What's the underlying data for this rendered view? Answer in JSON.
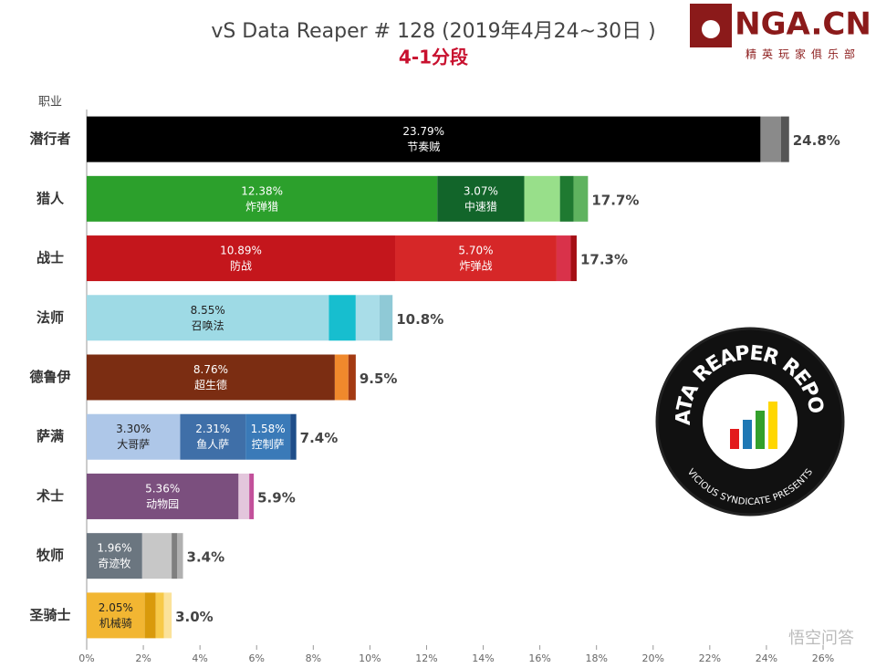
{
  "chart_data": {
    "type": "stacked-barh",
    "title": "vS Data Reaper # 128 (2019年4月24~30日 )",
    "subtitle": "4-1分段",
    "ylabel": "职业",
    "xlim": [
      0,
      26
    ],
    "xticks": [
      {
        "value": 0,
        "label": "0%"
      },
      {
        "value": 2,
        "label": "2%"
      },
      {
        "value": 4,
        "label": "4%"
      },
      {
        "value": 6,
        "label": "6%"
      },
      {
        "value": 8,
        "label": "8%"
      },
      {
        "value": 10,
        "label": "10%"
      },
      {
        "value": 12,
        "label": "12%"
      },
      {
        "value": 14,
        "label": "14%"
      },
      {
        "value": 16,
        "label": "16%"
      },
      {
        "value": 18,
        "label": "18%"
      },
      {
        "value": 20,
        "label": "20%"
      },
      {
        "value": 22,
        "label": "22%"
      },
      {
        "value": 24,
        "label": "24%"
      },
      {
        "value": 26,
        "label": "26%"
      }
    ],
    "bars": [
      {
        "category": "潜行者",
        "total": 24.8,
        "total_label": "24.8%",
        "segments": [
          {
            "name": "节奏贼",
            "value": 23.79,
            "value_label": "23.79%",
            "color": "#000000"
          },
          {
            "value": 0.72,
            "color": "#8a8a8a"
          },
          {
            "value": 0.29,
            "color": "#555555"
          }
        ]
      },
      {
        "category": "猎人",
        "total": 17.7,
        "total_label": "17.7%",
        "segments": [
          {
            "name": "炸弹猎",
            "value": 12.38,
            "value_label": "12.38%",
            "color": "#2ca02c"
          },
          {
            "name": "中速猎",
            "value": 3.07,
            "value_label": "3.07%",
            "color": "#12652a"
          },
          {
            "value": 1.26,
            "color": "#98df8a"
          },
          {
            "value": 0.48,
            "color": "#1f7a31"
          },
          {
            "value": 0.51,
            "color": "#5fb35f"
          }
        ]
      },
      {
        "category": "战士",
        "total": 17.3,
        "total_label": "17.3%",
        "segments": [
          {
            "name": "防战",
            "value": 10.89,
            "value_label": "10.89%",
            "color": "#c4161c"
          },
          {
            "name": "炸弹战",
            "value": 5.7,
            "value_label": "5.70%",
            "color": "#d62728"
          },
          {
            "value": 0.5,
            "color": "#d9324a"
          },
          {
            "value": 0.21,
            "color": "#a50f15"
          }
        ]
      },
      {
        "category": "法师",
        "total": 10.8,
        "total_label": "10.8%",
        "segments": [
          {
            "name": "召唤法",
            "value": 8.55,
            "value_label": "8.55%",
            "color": "#9edae5"
          },
          {
            "value": 0.95,
            "color": "#17becf"
          },
          {
            "value": 0.84,
            "color": "#a9dde8"
          },
          {
            "value": 0.46,
            "color": "#8fc9d6"
          }
        ]
      },
      {
        "category": "德鲁伊",
        "total": 9.5,
        "total_label": "9.5%",
        "segments": [
          {
            "name": "超生德",
            "value": 8.76,
            "value_label": "8.76%",
            "color": "#7b2d12"
          },
          {
            "value": 0.48,
            "color": "#f0892c"
          },
          {
            "value": 0.26,
            "color": "#a33a12"
          }
        ]
      },
      {
        "category": "萨满",
        "total": 7.4,
        "total_label": "7.4%",
        "segments": [
          {
            "name": "大哥萨",
            "value": 3.3,
            "value_label": "3.30%",
            "color": "#aec7e8"
          },
          {
            "name": "鱼人萨",
            "value": 2.31,
            "value_label": "2.31%",
            "color": "#3f6fa8"
          },
          {
            "name": "控制萨",
            "value": 1.58,
            "value_label": "1.58%",
            "color": "#3a7ab8"
          },
          {
            "value": 0.21,
            "color": "#1f4e8a"
          }
        ]
      },
      {
        "category": "术士",
        "total": 5.9,
        "total_label": "5.9%",
        "segments": [
          {
            "name": "动物园",
            "value": 5.36,
            "value_label": "5.36%",
            "color": "#7b4f7e"
          },
          {
            "value": 0.38,
            "color": "#e3c6dc"
          },
          {
            "value": 0.16,
            "color": "#c2509a"
          }
        ]
      },
      {
        "category": "牧师",
        "total": 3.4,
        "total_label": "3.4%",
        "segments": [
          {
            "name": "奇迹牧",
            "value": 1.96,
            "value_label": "1.96%",
            "color": "#6b7680"
          },
          {
            "value": 1.04,
            "color": "#c7c7c7"
          },
          {
            "value": 0.2,
            "color": "#7f7f7f"
          },
          {
            "value": 0.2,
            "color": "#b0b0b0"
          }
        ]
      },
      {
        "category": "圣骑士",
        "total": 3.0,
        "total_label": "3.0%",
        "segments": [
          {
            "name": "机械骑",
            "value": 2.05,
            "value_label": "2.05%",
            "color": "#f2b632"
          },
          {
            "value": 0.39,
            "color": "#d99a0b"
          },
          {
            "value": 0.29,
            "color": "#f7c948"
          },
          {
            "value": 0.27,
            "color": "#fbe29a"
          }
        ]
      }
    ],
    "logo": {
      "text": "NGA.CN",
      "tagline": "精英玩家俱乐部"
    },
    "badge": {
      "top": "DATA REAPER REPORT",
      "bottom": "VICIOUS SYNDICATE PRESENTS"
    },
    "watermark": "悟空问答"
  }
}
